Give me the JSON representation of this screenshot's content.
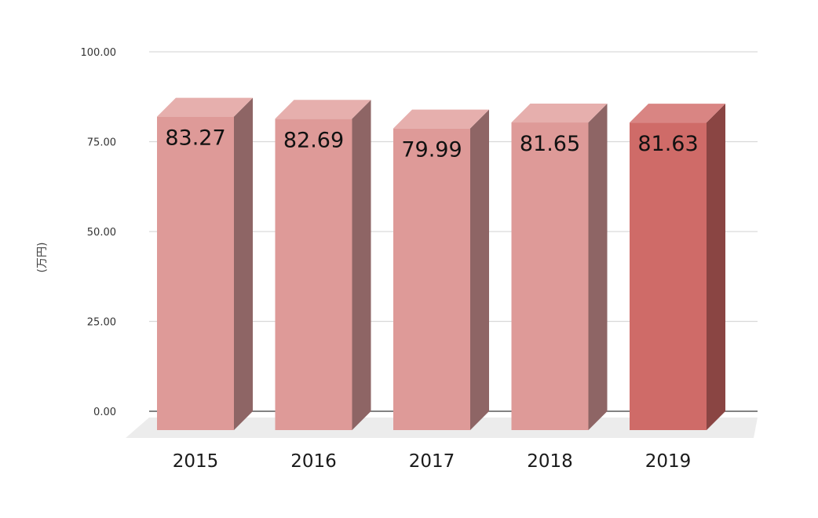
{
  "chart_data": {
    "type": "bar",
    "style": "3d-column",
    "categories": [
      "2015",
      "2016",
      "2017",
      "2018",
      "2019"
    ],
    "values": [
      83.27,
      82.69,
      79.99,
      81.65,
      81.63
    ],
    "data_labels": [
      "83.27",
      "82.69",
      "79.99",
      "81.65",
      "81.63"
    ],
    "ylabel": "(万円)",
    "ylim": [
      0,
      100
    ],
    "yticks": [
      "0.00",
      "25.00",
      "50.00",
      "75.00",
      "100.00"
    ],
    "grid": true,
    "legend": "none",
    "highlight_index": 4,
    "colors": {
      "bar_front": "#de9a98",
      "bar_side": "#8e6565",
      "bar_top": "#e6afad",
      "highlight_front": "#cf6b68",
      "highlight_side": "#8a4543",
      "highlight_top": "#d98583",
      "grid": "#d9d9d9",
      "axis": "#595959",
      "floor": "#ececec"
    }
  }
}
